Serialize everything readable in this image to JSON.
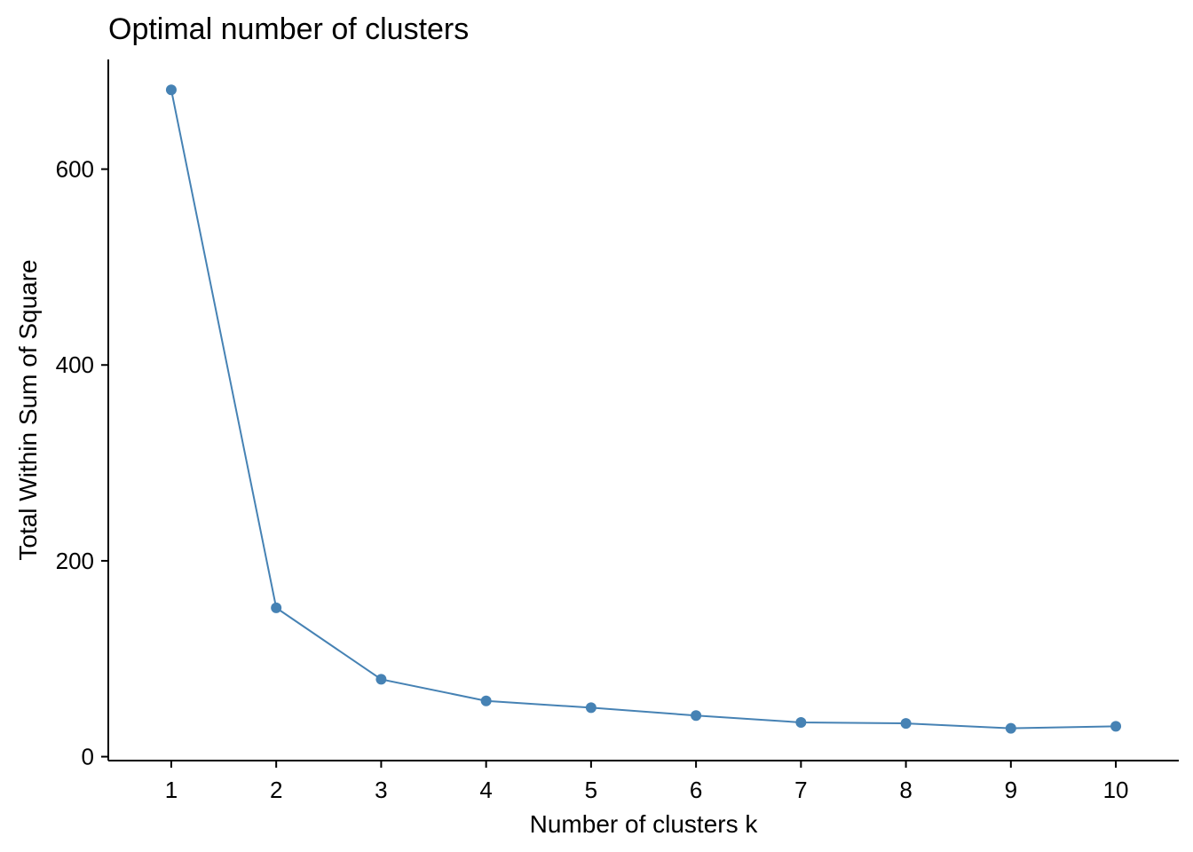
{
  "chart_data": {
    "type": "line",
    "title": "Optimal number of clusters",
    "xlabel": "Number of clusters k",
    "ylabel": "Total Within Sum of Square",
    "x": [
      1,
      2,
      3,
      4,
      5,
      6,
      7,
      8,
      9,
      10
    ],
    "series": [
      {
        "values": [
          681,
          152,
          79,
          57,
          50,
          42,
          35,
          34,
          29,
          31
        ]
      }
    ],
    "x_ticks": [
      "1",
      "2",
      "3",
      "4",
      "5",
      "6",
      "7",
      "8",
      "9",
      "10"
    ],
    "y_ticks": [
      0,
      200,
      400,
      600
    ],
    "xlim": [
      0.4,
      10.6
    ],
    "ylim": [
      -4,
      712
    ],
    "grid": false,
    "colors": {
      "series": "#4682B4",
      "axis": "#000000"
    }
  }
}
